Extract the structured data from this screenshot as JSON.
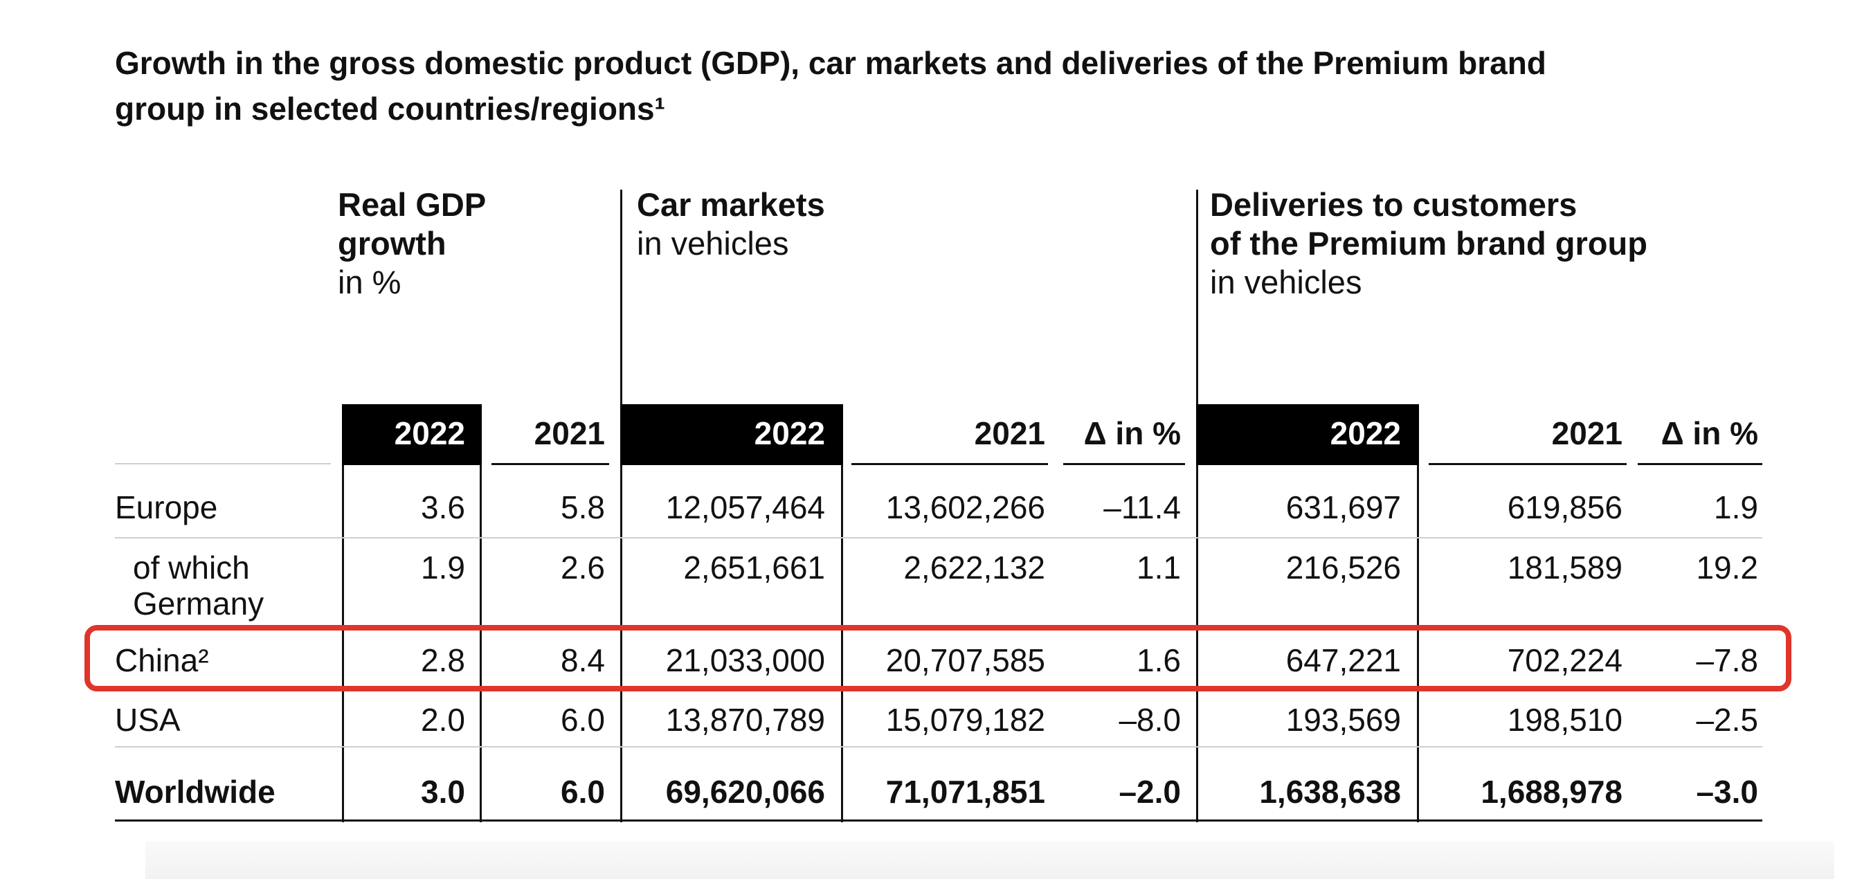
{
  "title": "Growth in the gross domestic product (GDP), car markets and deliveries of the Premium brand group in selected countries/regions¹",
  "groups": {
    "gdp": {
      "title_line1": "Real GDP",
      "title_line2": "growth",
      "unit": "in %"
    },
    "car_markets": {
      "title": "Car markets",
      "unit": "in vehicles"
    },
    "deliveries": {
      "title_line1": "Deliveries to customers",
      "title_line2": "of the Premium brand group",
      "unit": "in vehicles"
    }
  },
  "columns": [
    "2022",
    "2021",
    "2022",
    "2021",
    "Δ in %",
    "2022",
    "2021",
    "Δ in %"
  ],
  "rows": [
    {
      "label": "Europe",
      "values": [
        "3.6",
        "5.8",
        "12,057,464",
        "13,602,266",
        "–11.4",
        "631,697",
        "619,856",
        "1.9"
      ]
    },
    {
      "label_line1": "of which",
      "label_line2": "Germany",
      "values": [
        "1.9",
        "2.6",
        "2,651,661",
        "2,622,132",
        "1.1",
        "216,526",
        "181,589",
        "19.2"
      ]
    },
    {
      "label": "China²",
      "values": [
        "2.8",
        "8.4",
        "21,033,000",
        "20,707,585",
        "1.6",
        "647,221",
        "702,224",
        "–7.8"
      ]
    },
    {
      "label": "USA",
      "values": [
        "2.0",
        "6.0",
        "13,870,789",
        "15,079,182",
        "–8.0",
        "193,569",
        "198,510",
        "–2.5"
      ]
    },
    {
      "label": "Worldwide",
      "values": [
        "3.0",
        "6.0",
        "69,620,066",
        "71,071,851",
        "–2.0",
        "1,638,638",
        "1,688,978",
        "–3.0"
      ]
    }
  ],
  "colors": {
    "highlight": "#e0352b",
    "header_fill": "#000000"
  }
}
